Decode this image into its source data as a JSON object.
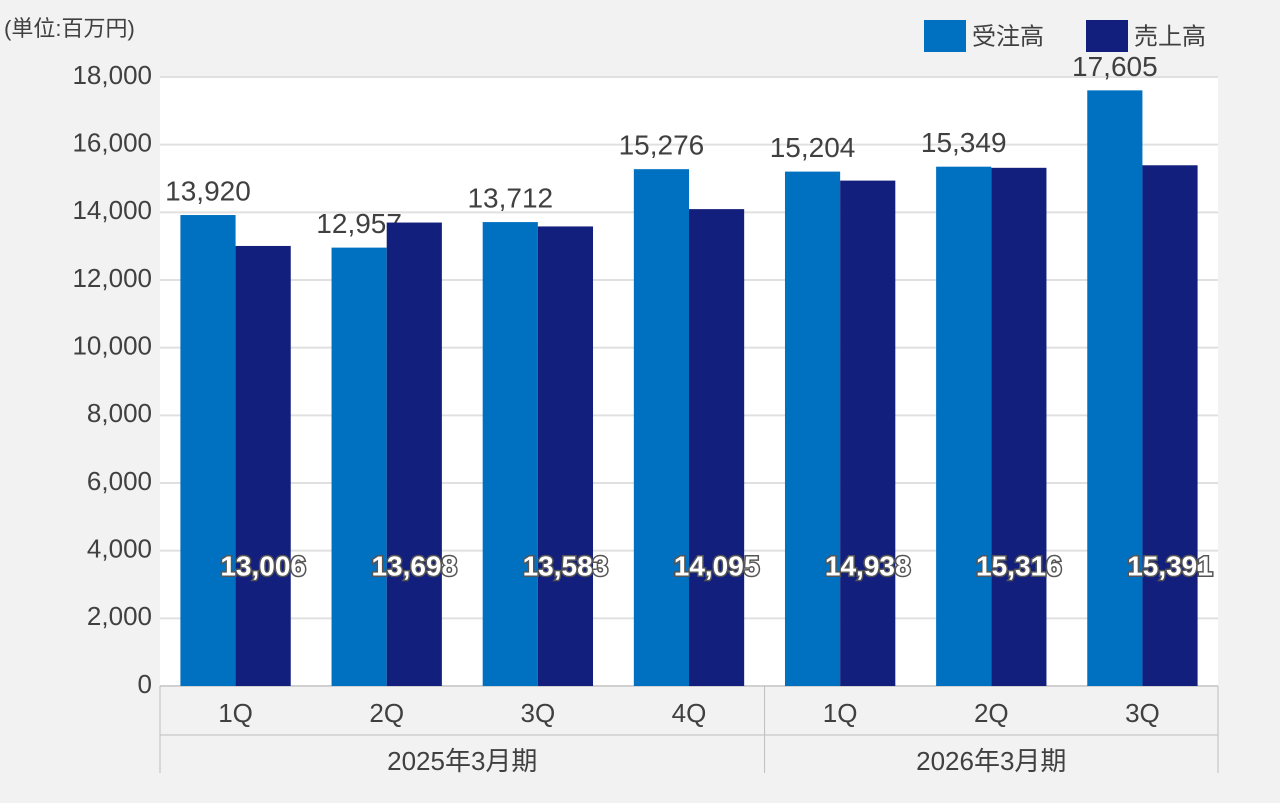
{
  "chart_data": {
    "type": "bar",
    "unit_label": "(単位:百万円)",
    "groups": [
      {
        "name": "2025年3月期",
        "categories": [
          "1Q",
          "2Q",
          "3Q",
          "4Q"
        ]
      },
      {
        "name": "2026年3月期",
        "categories": [
          "1Q",
          "2Q",
          "3Q"
        ]
      }
    ],
    "series": [
      {
        "name": "受注高",
        "color": "#0070c0",
        "values": [
          13920,
          12957,
          13712,
          15276,
          15204,
          15349,
          17605
        ],
        "value_labels": [
          "13,920",
          "12,957",
          "13,712",
          "15,276",
          "15,204",
          "15,349",
          "17,605"
        ]
      },
      {
        "name": "売上高",
        "color": "#131f7d",
        "values": [
          13006,
          13698,
          13583,
          14095,
          14938,
          15316,
          15391
        ],
        "value_labels": [
          "13,006",
          "13,698",
          "13,583",
          "14,095",
          "14,938",
          "15,316",
          "15,391"
        ]
      }
    ],
    "ylim": [
      0,
      18000
    ],
    "yticks": [
      0,
      {
        "value": 2000,
        "label": "2,000"
      },
      {
        "value": 4000,
        "label": "4,000"
      },
      {
        "value": 6000,
        "label": "6,000"
      },
      {
        "value": 8000,
        "label": "8,000"
      },
      {
        "value": 10000,
        "label": "10,000"
      },
      {
        "value": 12000,
        "label": "12,000"
      },
      {
        "value": 14000,
        "label": "14,000"
      },
      {
        "value": 16000,
        "label": "16,000"
      },
      {
        "value": 18000,
        "label": "18,000"
      }
    ],
    "grid": true,
    "legend": "top-right"
  }
}
